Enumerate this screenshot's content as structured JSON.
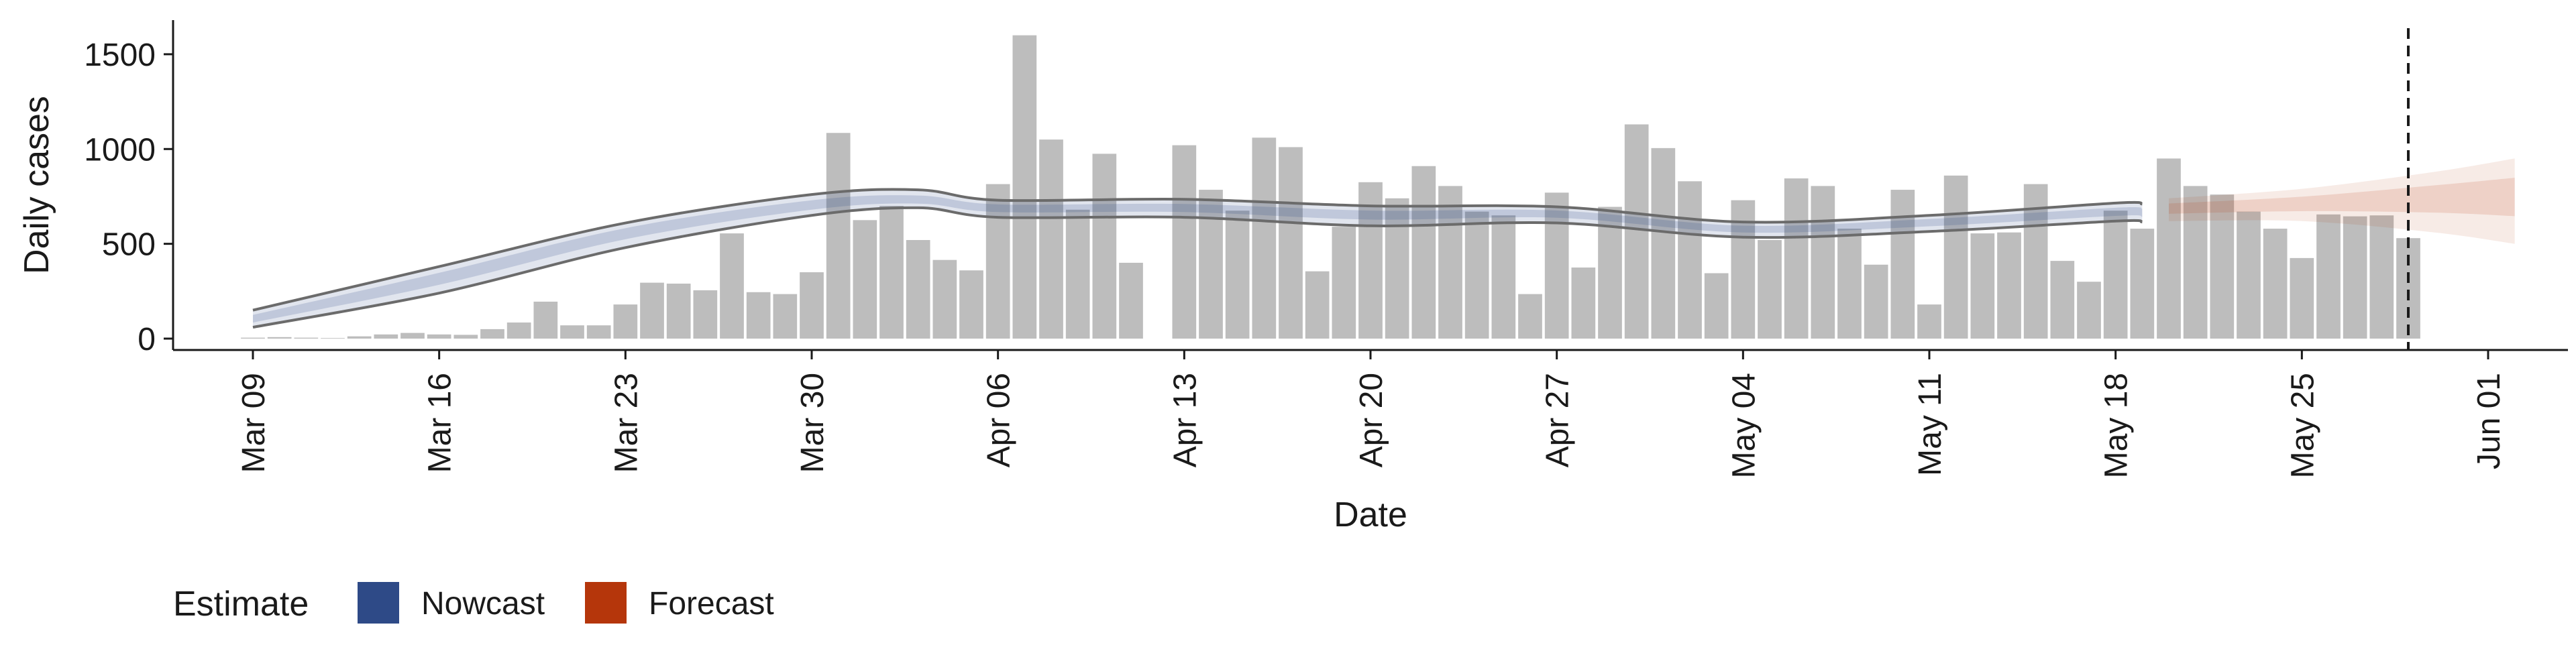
{
  "chart_data": {
    "type": "bar",
    "xlabel": "Date",
    "ylabel": "Daily cases",
    "yticks": [
      0,
      500,
      1000,
      1500
    ],
    "ylim": [
      -60,
      1680
    ],
    "xlim": [
      "2020-03-06",
      "2020-06-04"
    ],
    "xticks": [
      {
        "date": "2020-03-09",
        "label": "Mar 09"
      },
      {
        "date": "2020-03-16",
        "label": "Mar 16"
      },
      {
        "date": "2020-03-23",
        "label": "Mar 23"
      },
      {
        "date": "2020-03-30",
        "label": "Mar 30"
      },
      {
        "date": "2020-04-06",
        "label": "Apr 06"
      },
      {
        "date": "2020-04-13",
        "label": "Apr 13"
      },
      {
        "date": "2020-04-20",
        "label": "Apr 20"
      },
      {
        "date": "2020-04-27",
        "label": "Apr 27"
      },
      {
        "date": "2020-05-04",
        "label": "May 04"
      },
      {
        "date": "2020-05-11",
        "label": "May 11"
      },
      {
        "date": "2020-05-18",
        "label": "May 18"
      },
      {
        "date": "2020-05-25",
        "label": "May 25"
      },
      {
        "date": "2020-06-01",
        "label": "Jun 01"
      }
    ],
    "bars": {
      "start_date": "2020-03-09",
      "values": [
        5,
        8,
        5,
        3,
        12,
        22,
        30,
        22,
        20,
        50,
        85,
        195,
        70,
        70,
        180,
        295,
        290,
        255,
        555,
        245,
        235,
        350,
        1085,
        625,
        700,
        520,
        415,
        360,
        815,
        1600,
        1050,
        680,
        975,
        400,
        0,
        1020,
        785,
        675,
        1060,
        1010,
        355,
        590,
        825,
        740,
        910,
        805,
        670,
        650,
        235,
        770,
        375,
        695,
        1130,
        1005,
        830,
        345,
        730,
        520,
        845,
        805,
        580,
        390,
        785,
        180,
        860,
        555,
        560,
        815,
        410,
        300,
        675,
        580,
        950,
        805,
        760,
        670,
        580,
        425,
        655,
        645,
        650,
        530
      ]
    },
    "nowcast": {
      "name": "Nowcast",
      "color": "#2e4a87",
      "dates": [
        "2020-03-09",
        "2020-03-16",
        "2020-03-23",
        "2020-03-30",
        "2020-04-03",
        "2020-04-06",
        "2020-04-13",
        "2020-04-20",
        "2020-04-27",
        "2020-05-04",
        "2020-05-11",
        "2020-05-18",
        "2020-05-19"
      ],
      "upper": [
        150,
        380,
        610,
        760,
        785,
        730,
        735,
        700,
        695,
        615,
        650,
        715,
        710
      ],
      "median": [
        105,
        320,
        560,
        705,
        730,
        690,
        690,
        655,
        660,
        580,
        615,
        670,
        665
      ],
      "lower": [
        60,
        240,
        480,
        650,
        690,
        640,
        640,
        595,
        610,
        535,
        565,
        620,
        615
      ]
    },
    "forecast": {
      "name": "Forecast",
      "color": "#b5360b",
      "dates": [
        "2020-05-20",
        "2020-05-25",
        "2020-05-30",
        "2020-06-02"
      ],
      "upper": [
        740,
        790,
        880,
        950
      ],
      "median": [
        690,
        715,
        750,
        765
      ],
      "lower": [
        620,
        620,
        560,
        500
      ]
    },
    "vline_date": "2020-05-29",
    "legend": {
      "title": "Estimate",
      "placement": "bottom-left",
      "entries": [
        {
          "label": "Nowcast",
          "color": "#2e4a87"
        },
        {
          "label": "Forecast",
          "color": "#b5360b"
        }
      ]
    },
    "bar_color": "#bdbdbd",
    "grid": false
  }
}
